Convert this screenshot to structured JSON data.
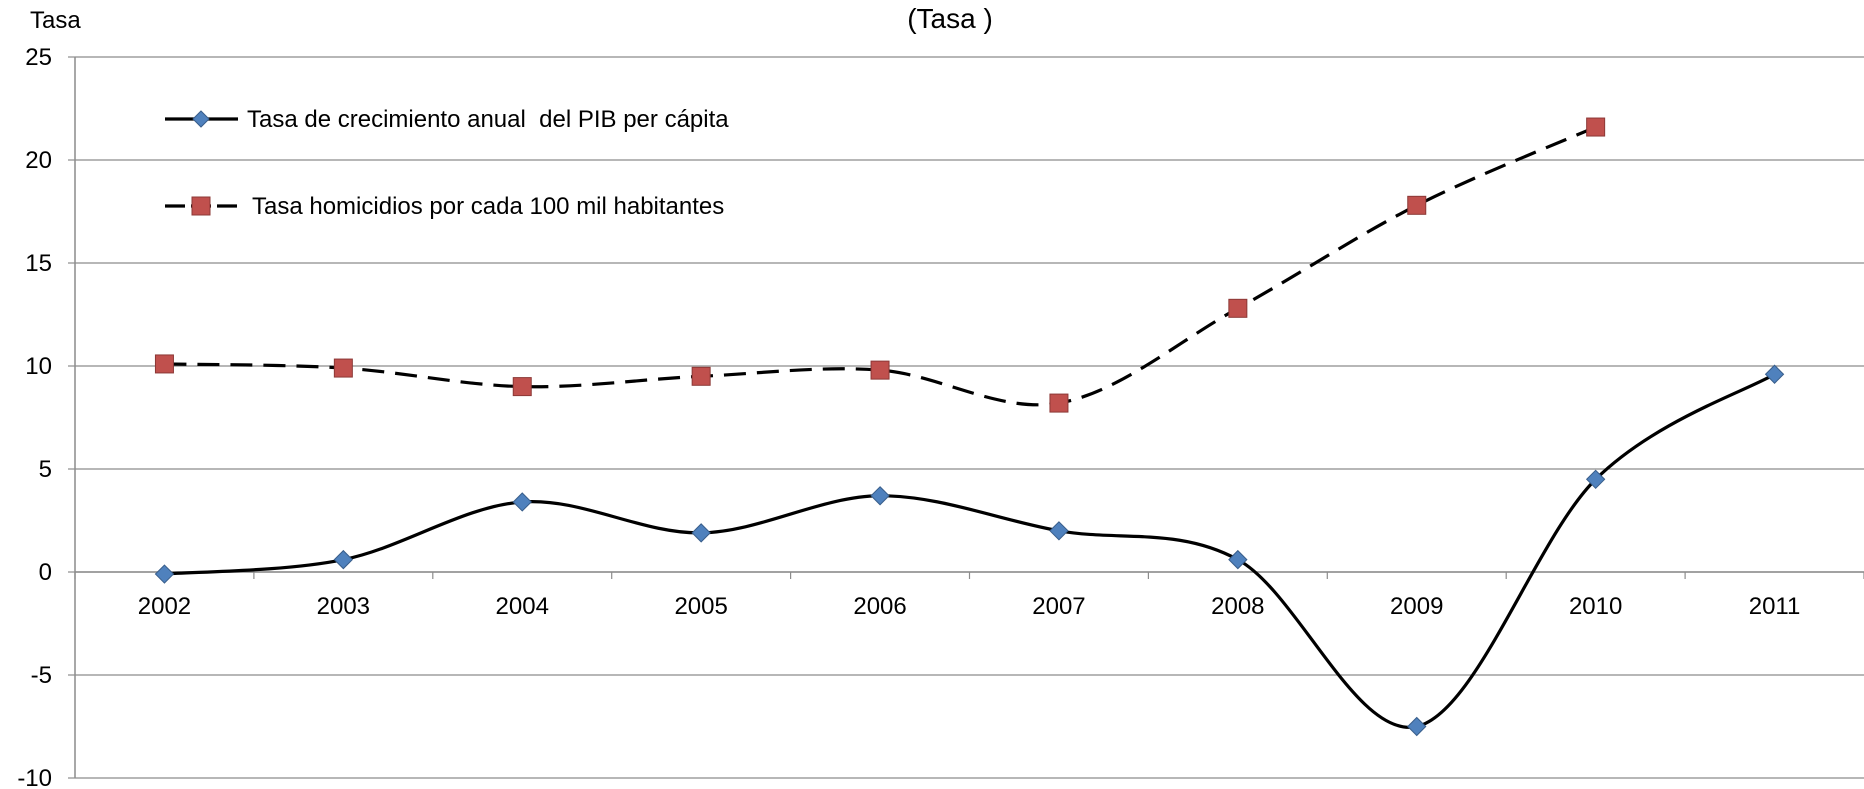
{
  "chart_data": {
    "type": "line",
    "title": "(Tasa )",
    "ylabel": "Tasa",
    "xlabel": "",
    "categories": [
      "2002",
      "2003",
      "2004",
      "2005",
      "2006",
      "2007",
      "2008",
      "2009",
      "2010",
      "2011"
    ],
    "ylim": [
      -10,
      25
    ],
    "yticks": [
      -10,
      -5,
      0,
      5,
      10,
      15,
      20,
      25
    ],
    "grid": true,
    "legend_position": "top-left",
    "series": [
      {
        "name": "Tasa de crecimiento anual  del PIB per cápita",
        "values": [
          -0.1,
          0.6,
          3.4,
          1.9,
          3.7,
          2.0,
          0.6,
          -7.5,
          4.5,
          9.6
        ],
        "marker": "diamond",
        "line_style": "solid",
        "color": "#000000",
        "marker_color": "#4F81BD"
      },
      {
        "name": "Tasa homicidios por cada 100 mil habitantes",
        "values": [
          10.1,
          9.9,
          9.0,
          9.5,
          9.8,
          8.2,
          12.8,
          17.8,
          21.6,
          null
        ],
        "marker": "square",
        "line_style": "dashed",
        "color": "#000000",
        "marker_color": "#C0504D"
      }
    ]
  }
}
